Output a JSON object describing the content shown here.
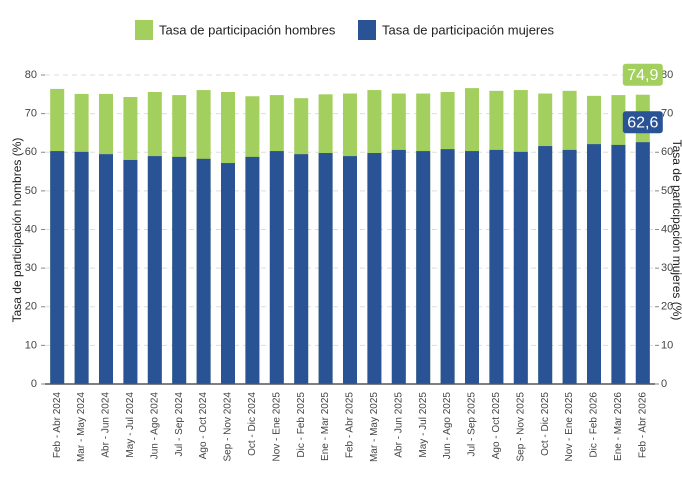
{
  "chart_data": {
    "type": "bar",
    "ylabel": "Tasa de participación hombres (%)",
    "y2label": "Tasa de participación mujeres (%)",
    "categories": [
      "Feb - Abr 2024",
      "Mar - May 2024",
      "Abr - Jun 2024",
      "May - Jul 2024",
      "Jun - Ago 2024",
      "Jul - Sep 2024",
      "Ago - Oct 2024",
      "Sep - Nov 2024",
      "Oct - Dic 2024",
      "Nov - Ene 2025",
      "Dic - Feb 2025",
      "Ene - Mar 2025",
      "Feb - Abr 2025",
      "Mar - May 2025",
      "Abr - Jun 2025",
      "May - Jul 2025",
      "Jun - Ago 2025",
      "Jul - Sep 2025",
      "Ago - Oct 2025",
      "Sep - Nov 2025",
      "Oct - Dic 2025",
      "Nov - Ene 2025",
      "Dic - Feb 2026",
      "Ene - Mar 2026",
      "Feb - Abr 2026"
    ],
    "series": [
      {
        "name": "Tasa de participación hombres",
        "color": "#a3cf5e",
        "values": [
          76.4,
          75.1,
          75.1,
          74.3,
          75.6,
          74.8,
          76.1,
          75.6,
          74.5,
          74.8,
          74.0,
          75.0,
          75.2,
          76.1,
          75.2,
          75.2,
          75.6,
          76.6,
          75.9,
          76.1,
          75.2,
          75.9,
          74.6,
          74.8,
          74.9
        ],
        "value_labels": [
          null,
          null,
          null,
          null,
          null,
          null,
          null,
          null,
          null,
          null,
          null,
          null,
          null,
          null,
          null,
          null,
          null,
          null,
          null,
          null,
          null,
          null,
          null,
          null,
          "74,9"
        ]
      },
      {
        "name": "Tasa de participación mujeres",
        "color": "#2a5395",
        "axis": "y2",
        "values": [
          60.3,
          60.1,
          59.5,
          58.0,
          59.0,
          58.8,
          58.3,
          57.2,
          58.8,
          60.3,
          59.5,
          59.8,
          59.0,
          59.8,
          60.6,
          60.3,
          60.8,
          60.3,
          60.6,
          60.1,
          61.6,
          60.6,
          62.1,
          61.9,
          62.6
        ],
        "value_labels": [
          null,
          null,
          null,
          null,
          null,
          null,
          null,
          null,
          null,
          null,
          null,
          null,
          null,
          null,
          null,
          null,
          null,
          null,
          null,
          null,
          null,
          null,
          null,
          null,
          "62,6"
        ]
      }
    ],
    "ylim": [
      0,
      80
    ],
    "yticks": [
      0,
      10,
      20,
      30,
      40,
      50,
      60,
      70,
      80
    ],
    "y2lim": [
      0,
      80
    ],
    "y2ticks": [
      0,
      10,
      20,
      30,
      40,
      50,
      60,
      70,
      80
    ],
    "grid": true
  }
}
